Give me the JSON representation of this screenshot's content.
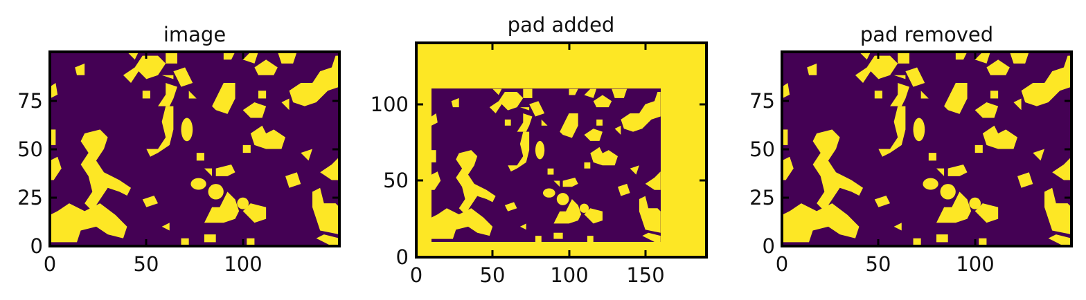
{
  "chart_data": [
    {
      "type": "heatmap",
      "title": "image",
      "xlabel": "",
      "ylabel": "",
      "xlim": [
        0,
        150
      ],
      "ylim": [
        0,
        100
      ],
      "xticks": [
        0,
        50,
        100
      ],
      "yticks": [
        0,
        25,
        50,
        75
      ],
      "colormap": "viridis",
      "values": [
        "binary blob field: 0 = pore (dark purple), 1 = solid (yellow)"
      ],
      "colors": {
        "low": "#440154",
        "high": "#fde725"
      }
    },
    {
      "type": "heatmap",
      "title": "pad added",
      "xlabel": "",
      "ylabel": "",
      "xlim": [
        0,
        190
      ],
      "ylim": [
        0,
        140
      ],
      "xticks": [
        0,
        50,
        100,
        150
      ],
      "yticks": [
        0,
        50,
        100
      ],
      "colormap": "viridis",
      "inner_image_extent": {
        "x": [
          10,
          160
        ],
        "y": [
          10,
          110
        ]
      },
      "colors": {
        "low": "#440154",
        "high": "#fde725"
      }
    },
    {
      "type": "heatmap",
      "title": "pad removed",
      "xlabel": "",
      "ylabel": "",
      "xlim": [
        0,
        150
      ],
      "ylim": [
        0,
        100
      ],
      "xticks": [
        0,
        50,
        100
      ],
      "yticks": [
        0,
        25,
        50,
        75
      ],
      "colormap": "viridis",
      "colors": {
        "low": "#440154",
        "high": "#fde725"
      }
    }
  ]
}
